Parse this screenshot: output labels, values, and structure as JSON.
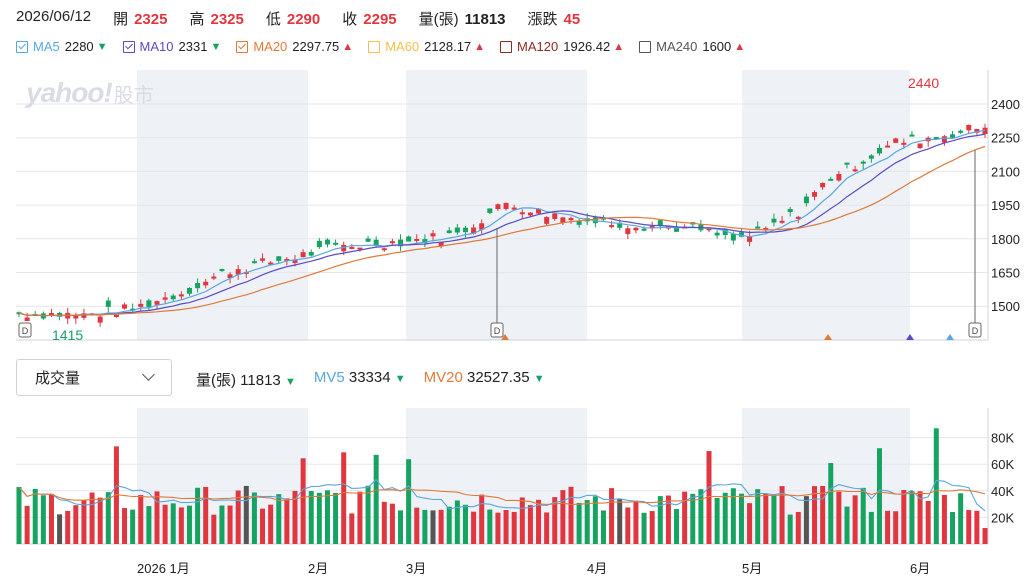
{
  "quote": {
    "date": "2026/06/12",
    "open_label": "開",
    "open": "2325",
    "high_label": "高",
    "high": "2325",
    "low_label": "低",
    "low": "2290",
    "close_label": "收",
    "close": "2295",
    "vol_label": "量(張)",
    "vol": "11813",
    "chg_label": "漲跌",
    "chg": "45"
  },
  "legend": [
    {
      "name": "MA5",
      "value": "2280",
      "dir": "down",
      "color": "#5aa6e0",
      "checked": true
    },
    {
      "name": "MA10",
      "value": "2331",
      "dir": "down",
      "color": "#5b4bc4",
      "checked": true
    },
    {
      "name": "MA20",
      "value": "2297.75",
      "dir": "up",
      "color": "#e07a3a",
      "checked": true
    },
    {
      "name": "MA60",
      "value": "2128.17",
      "dir": "up",
      "color": "#f2c14e",
      "checked": false
    },
    {
      "name": "MA120",
      "value": "1926.42",
      "dir": "up",
      "color": "#8b2b1e",
      "checked": false
    },
    {
      "name": "MA240",
      "value": "1600",
      "dir": "up",
      "color": "#555555",
      "checked": false
    }
  ],
  "logo": {
    "main": "yahoo!",
    "sub": "股市"
  },
  "price_chart": {
    "yticks": [
      "2400",
      "2250",
      "2100",
      "1950",
      "1800",
      "1650",
      "1500"
    ],
    "high_label": "2440",
    "low_label": "1415",
    "marker_letter": "D"
  },
  "volume_selector": {
    "label": "成交量"
  },
  "volume_info": {
    "vol_label": "量(張)",
    "vol": "11813",
    "vol_dir": "down",
    "mv5_label": "MV5",
    "mv5": "33334",
    "mv5_dir": "down",
    "mv20_label": "MV20",
    "mv20": "32527.35",
    "mv20_dir": "down"
  },
  "volume_chart": {
    "yticks": [
      "80K",
      "60K",
      "40K",
      "20K"
    ]
  },
  "xaxis": [
    "2026 1月",
    "2月",
    "3月",
    "4月",
    "5月",
    "6月"
  ],
  "colors": {
    "up": "#e0363f",
    "down": "#16a361",
    "neutral": "#555555",
    "mv5": "#5aa6e0",
    "mv20": "#e07a3a",
    "ma10": "#5b4bc4"
  }
}
